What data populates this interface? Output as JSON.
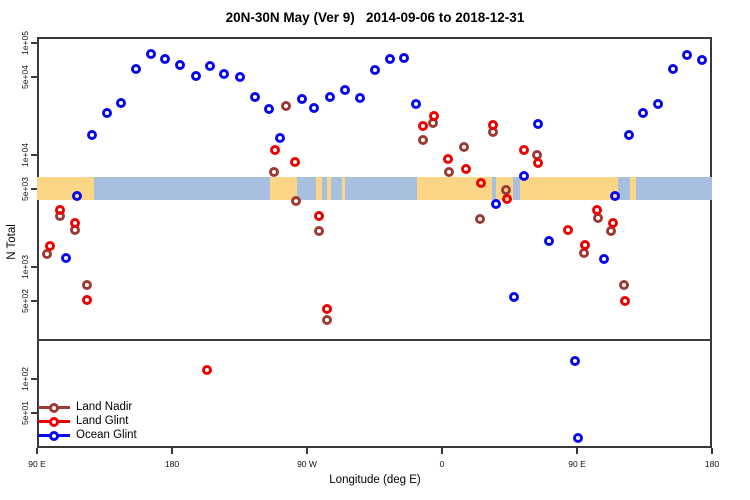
{
  "title": "20N-30N May (Ver 9)   2014-09-06 to 2018-12-31",
  "axes": {
    "x": {
      "label": "Longitude (deg E)",
      "ticks": [
        {
          "label": "90 E",
          "lon": 90
        },
        {
          "label": "180",
          "lon": 180
        },
        {
          "label": "90 W",
          "lon": 270
        },
        {
          "label": "0",
          "lon": 360
        },
        {
          "label": "90 E",
          "lon": 450
        },
        {
          "label": "180",
          "lon": 540
        }
      ]
    },
    "y": {
      "label": "N Total",
      "ticks": [
        {
          "label": "1e+05",
          "value": 100000
        },
        {
          "label": "5e+04",
          "value": 50000
        },
        {
          "label": "1e+04",
          "value": 10000
        },
        {
          "label": "5e+03",
          "value": 5000
        },
        {
          "label": "1e+03",
          "value": 1000
        },
        {
          "label": "5e+02",
          "value": 500
        },
        {
          "label": "1e+02",
          "value": 100
        },
        {
          "label": "5e+01",
          "value": 50
        }
      ]
    }
  },
  "legend": [
    {
      "label": "Land Nadir",
      "series": "land_nadir"
    },
    {
      "label": "Land Glint",
      "series": "land_glint"
    },
    {
      "label": "Ocean Glint",
      "series": "ocean_glint"
    }
  ],
  "chart_data": {
    "type": "scatter",
    "title": "20N-30N May (Ver 9)   2014-09-06 to 2018-12-31",
    "xlabel": "Longitude (deg E)",
    "ylabel": "N Total",
    "x_axis": {
      "units": "degrees along axis (90E wrapping east to 180)",
      "range": [
        90,
        540
      ]
    },
    "y_axis": {
      "scale": "log10",
      "top_value": 120000,
      "bottom_value": 24
    },
    "grid": false,
    "separator_line_n": 220,
    "map_band": {
      "description": "world-map strip of the 20N-30N latitude band drawn across the plot",
      "n_top": 6400,
      "n_bottom": 4000,
      "ocean_color": "#A8BFDF",
      "land_color": "#FBD687",
      "land_segments_lon": [
        [
          90,
          128
        ],
        [
          245,
          263
        ],
        [
          276,
          280
        ],
        [
          283,
          286
        ],
        [
          293,
          295
        ],
        [
          343,
          393
        ],
        [
          396,
          407
        ],
        [
          412,
          477
        ],
        [
          485,
          489
        ]
      ]
    },
    "series": [
      {
        "name": "Land Nadir",
        "color": "#9E3A34",
        "points": [
          {
            "lon": 96.7,
            "n": 1310
          },
          {
            "lon": 105.3,
            "n": 2860
          },
          {
            "lon": 115.3,
            "n": 2140
          },
          {
            "lon": 123.3,
            "n": 690
          },
          {
            "lon": 248.0,
            "n": 7080
          },
          {
            "lon": 256.0,
            "n": 27300
          },
          {
            "lon": 262.7,
            "n": 3890
          },
          {
            "lon": 278.0,
            "n": 2090
          },
          {
            "lon": 283.3,
            "n": 336
          },
          {
            "lon": 347.3,
            "n": 13600
          },
          {
            "lon": 354.0,
            "n": 19300
          },
          {
            "lon": 364.7,
            "n": 7080
          },
          {
            "lon": 374.7,
            "n": 11800
          },
          {
            "lon": 385.3,
            "n": 2690
          },
          {
            "lon": 394.0,
            "n": 16100
          },
          {
            "lon": 402.7,
            "n": 4900
          },
          {
            "lon": 423.3,
            "n": 10000
          },
          {
            "lon": 454.7,
            "n": 1330
          },
          {
            "lon": 464.0,
            "n": 2750
          },
          {
            "lon": 472.7,
            "n": 2090
          },
          {
            "lon": 481.3,
            "n": 690
          }
        ]
      },
      {
        "name": "Land Glint",
        "color": "#EE0000",
        "points": [
          {
            "lon": 98.7,
            "n": 1540
          },
          {
            "lon": 105.3,
            "n": 3240
          },
          {
            "lon": 115.3,
            "n": 2470
          },
          {
            "lon": 123.3,
            "n": 510
          },
          {
            "lon": 203.3,
            "n": 120
          },
          {
            "lon": 248.7,
            "n": 11000
          },
          {
            "lon": 262.0,
            "n": 8630
          },
          {
            "lon": 278.0,
            "n": 2860
          },
          {
            "lon": 283.3,
            "n": 423
          },
          {
            "lon": 347.3,
            "n": 18100
          },
          {
            "lon": 354.7,
            "n": 22300
          },
          {
            "lon": 364.0,
            "n": 9170
          },
          {
            "lon": 376.0,
            "n": 7500
          },
          {
            "lon": 386.0,
            "n": 5620
          },
          {
            "lon": 394.0,
            "n": 18600
          },
          {
            "lon": 403.3,
            "n": 4070
          },
          {
            "lon": 414.7,
            "n": 11000
          },
          {
            "lon": 424.0,
            "n": 8500
          },
          {
            "lon": 444.0,
            "n": 2140
          },
          {
            "lon": 455.3,
            "n": 1580
          },
          {
            "lon": 463.3,
            "n": 3240
          },
          {
            "lon": 474.0,
            "n": 2470
          },
          {
            "lon": 482.0,
            "n": 500
          }
        ]
      },
      {
        "name": "Ocean Glint",
        "color": "#0808EE",
        "points": [
          {
            "lon": 109.3,
            "n": 1200
          },
          {
            "lon": 116.7,
            "n": 4290
          },
          {
            "lon": 126.7,
            "n": 15000
          },
          {
            "lon": 136.7,
            "n": 23700
          },
          {
            "lon": 146.0,
            "n": 29000
          },
          {
            "lon": 156.0,
            "n": 58600
          },
          {
            "lon": 166.0,
            "n": 79700
          },
          {
            "lon": 175.3,
            "n": 72000
          },
          {
            "lon": 185.3,
            "n": 63800
          },
          {
            "lon": 196.0,
            "n": 50800
          },
          {
            "lon": 205.3,
            "n": 62400
          },
          {
            "lon": 214.7,
            "n": 52800
          },
          {
            "lon": 225.3,
            "n": 49700
          },
          {
            "lon": 235.3,
            "n": 32900
          },
          {
            "lon": 244.7,
            "n": 25800
          },
          {
            "lon": 252.0,
            "n": 14200
          },
          {
            "lon": 266.7,
            "n": 31600
          },
          {
            "lon": 274.7,
            "n": 26300
          },
          {
            "lon": 285.3,
            "n": 32900
          },
          {
            "lon": 295.3,
            "n": 38200
          },
          {
            "lon": 305.3,
            "n": 32400
          },
          {
            "lon": 315.3,
            "n": 57500
          },
          {
            "lon": 325.3,
            "n": 72000
          },
          {
            "lon": 334.7,
            "n": 73700
          },
          {
            "lon": 342.7,
            "n": 28600
          },
          {
            "lon": 396.0,
            "n": 3650
          },
          {
            "lon": 408.0,
            "n": 540
          },
          {
            "lon": 414.7,
            "n": 6500
          },
          {
            "lon": 424.0,
            "n": 18900
          },
          {
            "lon": 431.3,
            "n": 1710
          },
          {
            "lon": 448.7,
            "n": 145
          },
          {
            "lon": 450.7,
            "n": 30
          },
          {
            "lon": 468.0,
            "n": 1180
          },
          {
            "lon": 475.3,
            "n": 4290
          },
          {
            "lon": 484.7,
            "n": 15000
          },
          {
            "lon": 494.0,
            "n": 23700
          },
          {
            "lon": 504.0,
            "n": 28600
          },
          {
            "lon": 514.0,
            "n": 58600
          },
          {
            "lon": 523.3,
            "n": 78200
          },
          {
            "lon": 533.3,
            "n": 70200
          }
        ]
      }
    ],
    "legend_position": "bottom-left"
  }
}
